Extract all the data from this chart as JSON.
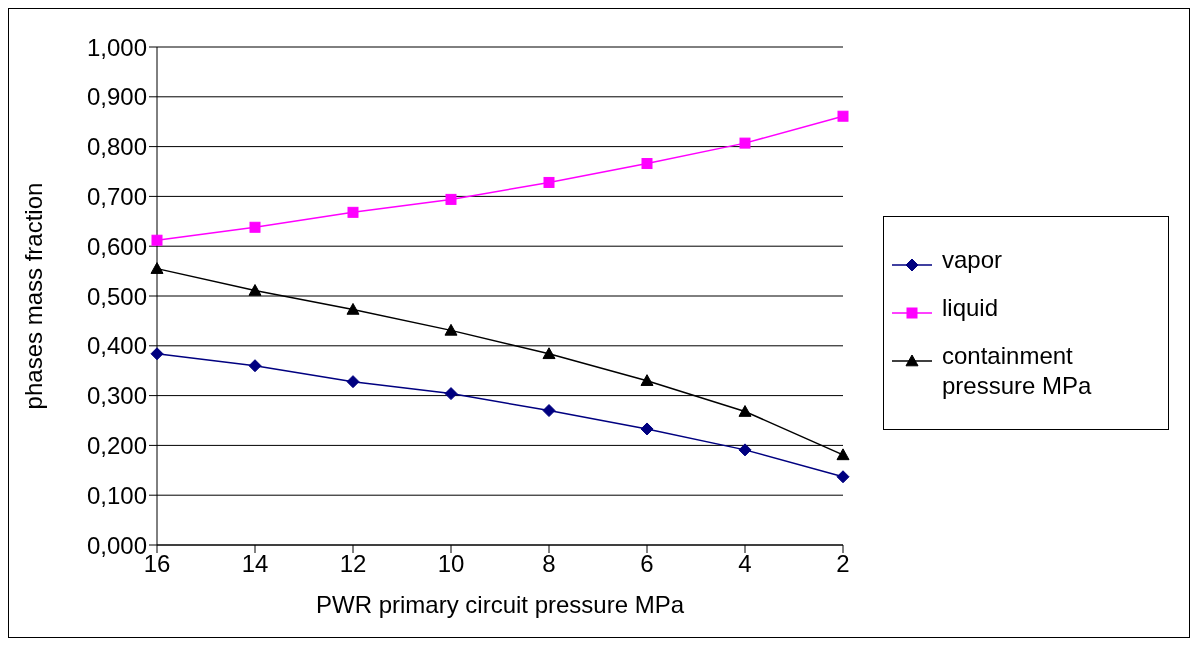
{
  "chart_data": {
    "type": "line",
    "xlabel": "PWR primary circuit pressure MPa",
    "ylabel": "phases  mass fraction",
    "categories": [
      "16",
      "14",
      "12",
      "10",
      "8",
      "6",
      "4",
      "2"
    ],
    "series": [
      {
        "name": "vapor",
        "color": "#000080",
        "marker": "diamond",
        "values": [
          0.384,
          0.36,
          0.328,
          0.304,
          0.27,
          0.233,
          0.191,
          0.137
        ]
      },
      {
        "name": "liquid",
        "color": "#ff00ff",
        "marker": "square",
        "values": [
          0.612,
          0.638,
          0.668,
          0.694,
          0.728,
          0.766,
          0.807,
          0.861
        ]
      },
      {
        "name": "containment pressure MPa",
        "color": "#000000",
        "marker": "triangle",
        "values": [
          0.555,
          0.511,
          0.473,
          0.431,
          0.384,
          0.33,
          0.268,
          0.181
        ]
      }
    ],
    "ylim": [
      0,
      1
    ],
    "yticks": [
      {
        "value": 0,
        "label": "0,000"
      },
      {
        "value": 0.1,
        "label": "0,100"
      },
      {
        "value": 0.2,
        "label": "0,200"
      },
      {
        "value": 0.3,
        "label": "0,300"
      },
      {
        "value": 0.4,
        "label": "0,400"
      },
      {
        "value": 0.5,
        "label": "0,500"
      },
      {
        "value": 0.6,
        "label": "0,600"
      },
      {
        "value": 0.7,
        "label": "0,700"
      },
      {
        "value": 0.8,
        "label": "0,800"
      },
      {
        "value": 0.9,
        "label": "0,900"
      },
      {
        "value": 1,
        "label": "1,000"
      }
    ],
    "grid": "y",
    "legend": "right",
    "line_style": "solid"
  }
}
